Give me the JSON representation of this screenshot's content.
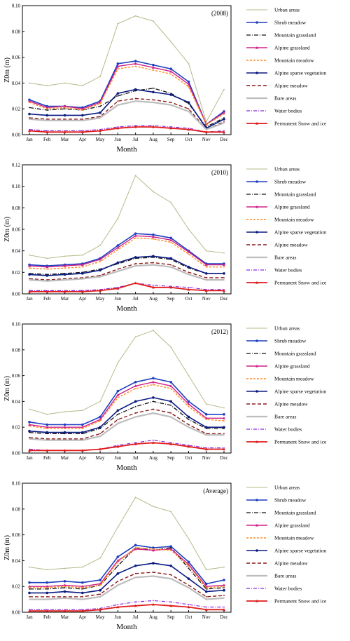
{
  "legend_entries": [
    "Urban areas",
    "Shrub meadow",
    "Mountain grassland",
    "Alpine grassland",
    "Mountain meadow",
    "Alpine sparse vegetation",
    "Alpine meadow",
    "Bare areas",
    "Water bodies",
    "Permanent Snow and ice"
  ],
  "colors": {
    "urban": "#b7b98a",
    "shrub": "#1f3fbf",
    "mtn_grass": "#111111",
    "alp_grass": "#d0208b",
    "mtn_meadow": "#ff8a1e",
    "alp_sparse": "#0b1a80",
    "alp_meadow": "#8b1a1a",
    "bare": "#bdbdbd",
    "water": "#8a2be2",
    "snow": "#e01b1b"
  },
  "chart_data": [
    {
      "type": "line",
      "annotation": "(2008)",
      "xlabel": "Month",
      "ylabel": "Z0m (m)",
      "ylim": [
        0,
        0.1
      ],
      "yticks": [
        "0.00",
        "0.02",
        "0.04",
        "0.06",
        "0.08",
        "0.10"
      ],
      "categories": [
        "Jan",
        "Feb",
        "Mar",
        "Apr",
        "May",
        "Jun",
        "Jul",
        "Aug",
        "Sep",
        "Oct",
        "Nov",
        "Dec"
      ],
      "series": [
        {
          "name": "Urban areas",
          "values": [
            0.04,
            0.038,
            0.04,
            0.038,
            0.045,
            0.086,
            0.092,
            0.088,
            0.072,
            0.055,
            0.01,
            0.035
          ]
        },
        {
          "name": "Shrub meadow",
          "values": [
            0.027,
            0.022,
            0.022,
            0.021,
            0.026,
            0.055,
            0.057,
            0.054,
            0.051,
            0.041,
            0.008,
            0.018
          ]
        },
        {
          "name": "Mountain grassland",
          "values": [
            0.021,
            0.019,
            0.02,
            0.019,
            0.022,
            0.03,
            0.034,
            0.036,
            0.032,
            0.024,
            0.006,
            0.013
          ]
        },
        {
          "name": "Alpine grassland",
          "values": [
            0.026,
            0.021,
            0.022,
            0.02,
            0.025,
            0.053,
            0.055,
            0.052,
            0.049,
            0.039,
            0.008,
            0.017
          ]
        },
        {
          "name": "Mountain meadow",
          "values": [
            0.025,
            0.02,
            0.021,
            0.019,
            0.024,
            0.051,
            0.053,
            0.05,
            0.047,
            0.037,
            0.008,
            0.016
          ]
        },
        {
          "name": "Alpine sparse vegetation",
          "values": [
            0.016,
            0.015,
            0.015,
            0.015,
            0.017,
            0.032,
            0.035,
            0.033,
            0.031,
            0.025,
            0.005,
            0.012
          ]
        },
        {
          "name": "Alpine meadow",
          "values": [
            0.013,
            0.012,
            0.012,
            0.012,
            0.014,
            0.026,
            0.028,
            0.027,
            0.025,
            0.02,
            0.004,
            0.01
          ]
        },
        {
          "name": "Bare areas",
          "values": [
            0.012,
            0.011,
            0.011,
            0.011,
            0.013,
            0.023,
            0.026,
            0.025,
            0.023,
            0.018,
            0.004,
            0.009
          ]
        },
        {
          "name": "Water bodies",
          "values": [
            0.004,
            0.003,
            0.003,
            0.003,
            0.004,
            0.006,
            0.007,
            0.007,
            0.006,
            0.005,
            0.002,
            0.003
          ]
        },
        {
          "name": "Permanent Snow and ice",
          "values": [
            0.003,
            0.002,
            0.002,
            0.002,
            0.003,
            0.005,
            0.006,
            0.006,
            0.005,
            0.004,
            0.002,
            0.002
          ]
        }
      ]
    },
    {
      "type": "line",
      "annotation": "(2010)",
      "xlabel": "Month",
      "ylabel": "Z0m (m)",
      "ylim": [
        0,
        0.12
      ],
      "yticks": [
        "0.00",
        "0.02",
        "0.04",
        "0.06",
        "0.08",
        "0.10",
        "0.12"
      ],
      "categories": [
        "Jan",
        "Feb",
        "Mar",
        "Apr",
        "May",
        "Jun",
        "Jul",
        "Aug",
        "Sep",
        "Oct",
        "Nov",
        "Dec"
      ],
      "series": [
        {
          "name": "Urban areas",
          "values": [
            0.036,
            0.033,
            0.035,
            0.036,
            0.045,
            0.07,
            0.11,
            0.095,
            0.085,
            0.06,
            0.04,
            0.038
          ]
        },
        {
          "name": "Shrub meadow",
          "values": [
            0.027,
            0.026,
            0.027,
            0.028,
            0.033,
            0.045,
            0.056,
            0.055,
            0.052,
            0.04,
            0.028,
            0.028
          ]
        },
        {
          "name": "Mountain grassland",
          "values": [
            0.019,
            0.018,
            0.019,
            0.02,
            0.023,
            0.028,
            0.033,
            0.034,
            0.032,
            0.024,
            0.019,
            0.019
          ]
        },
        {
          "name": "Alpine grassland",
          "values": [
            0.026,
            0.025,
            0.026,
            0.027,
            0.032,
            0.043,
            0.054,
            0.053,
            0.05,
            0.039,
            0.027,
            0.027
          ]
        },
        {
          "name": "Mountain meadow",
          "values": [
            0.024,
            0.023,
            0.024,
            0.025,
            0.03,
            0.041,
            0.052,
            0.051,
            0.048,
            0.037,
            0.025,
            0.025
          ]
        },
        {
          "name": "Alpine sparse vegetation",
          "values": [
            0.018,
            0.017,
            0.018,
            0.019,
            0.022,
            0.029,
            0.034,
            0.035,
            0.033,
            0.025,
            0.019,
            0.019
          ]
        },
        {
          "name": "Alpine meadow",
          "values": [
            0.014,
            0.013,
            0.014,
            0.015,
            0.017,
            0.023,
            0.028,
            0.029,
            0.027,
            0.02,
            0.015,
            0.015
          ]
        },
        {
          "name": "Bare areas",
          "values": [
            0.013,
            0.012,
            0.013,
            0.014,
            0.016,
            0.021,
            0.026,
            0.027,
            0.025,
            0.018,
            0.013,
            0.013
          ]
        },
        {
          "name": "Water bodies",
          "values": [
            0.003,
            0.003,
            0.003,
            0.003,
            0.004,
            0.006,
            0.01,
            0.008,
            0.007,
            0.006,
            0.004,
            0.004
          ]
        },
        {
          "name": "Permanent Snow and ice",
          "values": [
            0.002,
            0.002,
            0.002,
            0.002,
            0.003,
            0.005,
            0.01,
            0.006,
            0.006,
            0.004,
            0.003,
            0.003
          ]
        }
      ]
    },
    {
      "type": "line",
      "annotation": "(2012)",
      "xlabel": "Month",
      "ylabel": "Z0m (m)",
      "ylim": [
        0,
        0.1
      ],
      "yticks": [
        "0.00",
        "0.02",
        "0.04",
        "0.06",
        "0.08",
        "0.10"
      ],
      "categories": [
        "Jan",
        "Feb",
        "Mar",
        "Apr",
        "May",
        "Jun",
        "Jul",
        "Aug",
        "Sep",
        "Oct",
        "Nov",
        "Dec"
      ],
      "series": [
        {
          "name": "Urban areas",
          "values": [
            0.034,
            0.03,
            0.032,
            0.033,
            0.04,
            0.07,
            0.09,
            0.095,
            0.082,
            0.06,
            0.038,
            0.035
          ]
        },
        {
          "name": "Shrub meadow",
          "values": [
            0.024,
            0.022,
            0.022,
            0.022,
            0.028,
            0.048,
            0.055,
            0.058,
            0.055,
            0.04,
            0.03,
            0.03
          ]
        },
        {
          "name": "Mountain grassland",
          "values": [
            0.016,
            0.015,
            0.015,
            0.015,
            0.019,
            0.03,
            0.036,
            0.04,
            0.037,
            0.026,
            0.019,
            0.019
          ]
        },
        {
          "name": "Alpine grassland",
          "values": [
            0.022,
            0.02,
            0.02,
            0.02,
            0.026,
            0.045,
            0.052,
            0.055,
            0.052,
            0.038,
            0.027,
            0.027
          ]
        },
        {
          "name": "Mountain meadow",
          "values": [
            0.021,
            0.019,
            0.019,
            0.019,
            0.025,
            0.043,
            0.05,
            0.053,
            0.05,
            0.036,
            0.026,
            0.025
          ]
        },
        {
          "name": "Alpine sparse vegetation",
          "values": [
            0.017,
            0.016,
            0.016,
            0.016,
            0.02,
            0.033,
            0.04,
            0.043,
            0.04,
            0.028,
            0.02,
            0.02
          ]
        },
        {
          "name": "Alpine meadow",
          "values": [
            0.012,
            0.011,
            0.011,
            0.011,
            0.015,
            0.026,
            0.031,
            0.034,
            0.031,
            0.022,
            0.015,
            0.015
          ]
        },
        {
          "name": "Bare areas",
          "values": [
            0.011,
            0.01,
            0.01,
            0.01,
            0.013,
            0.023,
            0.028,
            0.031,
            0.028,
            0.02,
            0.014,
            0.014
          ]
        },
        {
          "name": "Water bodies",
          "values": [
            0.003,
            0.002,
            0.002,
            0.002,
            0.003,
            0.006,
            0.008,
            0.01,
            0.008,
            0.006,
            0.004,
            0.004
          ]
        },
        {
          "name": "Permanent Snow and ice",
          "values": [
            0.002,
            0.002,
            0.002,
            0.002,
            0.003,
            0.005,
            0.007,
            0.008,
            0.007,
            0.005,
            0.003,
            0.003
          ]
        }
      ]
    },
    {
      "type": "line",
      "annotation": "(Average)",
      "xlabel": "Month",
      "ylabel": "Z0m (m)",
      "ylim": [
        0,
        0.1
      ],
      "yticks": [
        "0.00",
        "0.02",
        "0.04",
        "0.06",
        "0.08",
        "0.10"
      ],
      "categories": [
        "Jan",
        "Feb",
        "Mar",
        "Apr",
        "May",
        "Jun",
        "Jul",
        "Aug",
        "Sep",
        "Oct",
        "Nov",
        "Dec"
      ],
      "series": [
        {
          "name": "Urban areas",
          "values": [
            0.035,
            0.033,
            0.034,
            0.035,
            0.042,
            0.066,
            0.089,
            0.082,
            0.078,
            0.057,
            0.033,
            0.035
          ]
        },
        {
          "name": "Shrub meadow",
          "values": [
            0.023,
            0.023,
            0.024,
            0.023,
            0.025,
            0.043,
            0.052,
            0.05,
            0.051,
            0.039,
            0.022,
            0.025
          ]
        },
        {
          "name": "Mountain grassland",
          "values": [
            0.018,
            0.018,
            0.019,
            0.018,
            0.021,
            0.036,
            0.05,
            0.048,
            0.05,
            0.034,
            0.018,
            0.019
          ]
        },
        {
          "name": "Alpine grassland",
          "values": [
            0.02,
            0.02,
            0.021,
            0.02,
            0.022,
            0.04,
            0.049,
            0.048,
            0.049,
            0.037,
            0.02,
            0.021
          ]
        },
        {
          "name": "Mountain meadow",
          "values": [
            0.019,
            0.019,
            0.02,
            0.019,
            0.021,
            0.039,
            0.05,
            0.049,
            0.048,
            0.036,
            0.019,
            0.02
          ]
        },
        {
          "name": "Alpine sparse vegetation",
          "values": [
            0.015,
            0.015,
            0.016,
            0.015,
            0.017,
            0.03,
            0.036,
            0.038,
            0.036,
            0.026,
            0.016,
            0.017
          ]
        },
        {
          "name": "Alpine meadow",
          "values": [
            0.012,
            0.012,
            0.012,
            0.012,
            0.014,
            0.024,
            0.03,
            0.031,
            0.029,
            0.021,
            0.012,
            0.013
          ]
        },
        {
          "name": "Bare areas",
          "values": [
            0.01,
            0.01,
            0.011,
            0.01,
            0.012,
            0.021,
            0.027,
            0.028,
            0.026,
            0.019,
            0.01,
            0.011
          ]
        },
        {
          "name": "Water bodies",
          "values": [
            0.002,
            0.002,
            0.002,
            0.002,
            0.003,
            0.006,
            0.008,
            0.009,
            0.008,
            0.006,
            0.004,
            0.004
          ]
        },
        {
          "name": "Permanent Snow and ice",
          "values": [
            0.001,
            0.001,
            0.001,
            0.001,
            0.002,
            0.004,
            0.005,
            0.006,
            0.005,
            0.004,
            0.002,
            0.002
          ]
        }
      ]
    }
  ]
}
